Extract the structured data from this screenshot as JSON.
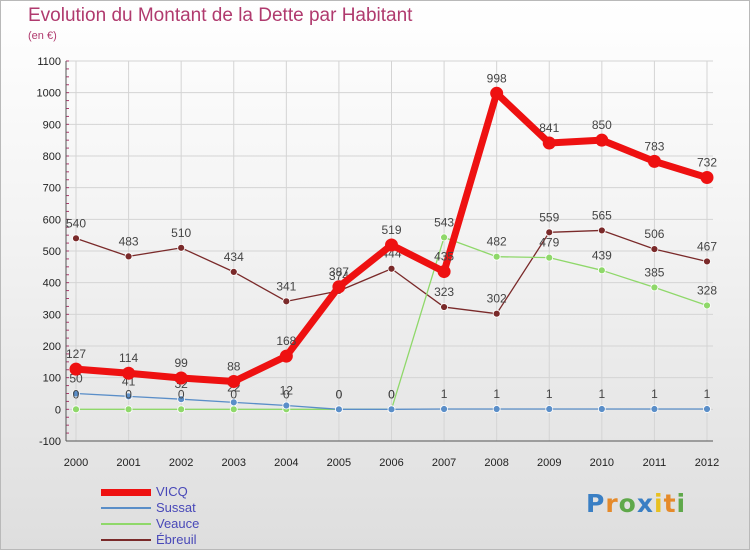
{
  "title": "Evolution du Montant de la Dette par Habitant",
  "subtitle": "(en €)",
  "logo": {
    "letters": [
      "P",
      "r",
      "o",
      "x",
      "i",
      "t",
      "i"
    ],
    "colors": [
      "#3a7fc4",
      "#e58a2a",
      "#5fa84a",
      "#3a7fc4",
      "#e8c020",
      "#e58a2a",
      "#5fa84a"
    ]
  },
  "chart_data": {
    "type": "line",
    "x": [
      "2000",
      "2001",
      "2002",
      "2003",
      "2004",
      "2005",
      "2006",
      "2007",
      "2008",
      "2009",
      "2010",
      "2011",
      "2012"
    ],
    "yticks": [
      "-100",
      "0",
      "100",
      "200",
      "300",
      "400",
      "500",
      "600",
      "700",
      "800",
      "900",
      "1000",
      "1100"
    ],
    "ylim": [
      -100,
      1100
    ],
    "grid": true,
    "legend_position": "bottom-left",
    "series": [
      {
        "name": "Ébreuil",
        "color": "#7a2a2a",
        "width": 1.3,
        "marker_r": 3.5,
        "values": [
          540,
          483,
          510,
          434,
          341,
          374,
          444,
          323,
          302,
          559,
          565,
          506,
          467
        ],
        "labels": [
          "540",
          "483",
          "510",
          "434",
          "341",
          "374",
          "444",
          "323",
          "302",
          "559",
          "565",
          "506",
          "467"
        ]
      },
      {
        "name": "Veauce",
        "color": "#8fd86a",
        "width": 1.3,
        "marker_r": 3.5,
        "values": [
          0,
          0,
          0,
          0,
          0,
          0,
          0,
          543,
          482,
          479,
          439,
          385,
          328
        ],
        "labels": [
          "",
          "",
          "",
          "",
          "",
          "",
          "",
          "543",
          "482",
          "479",
          "439",
          "385",
          "328"
        ]
      },
      {
        "name": "Sussat",
        "color": "#5a8ec8",
        "width": 1.3,
        "marker_r": 3.5,
        "values": [
          50,
          41,
          32,
          22,
          12,
          0,
          0,
          1,
          1,
          1,
          1,
          1,
          1
        ],
        "labels": [
          "50",
          "41",
          "32",
          "22",
          "12",
          "0",
          "0",
          "1",
          "1",
          "1",
          "1",
          "1",
          "1"
        ]
      },
      {
        "name": "VICQ",
        "color": "#ee1111",
        "width": 7,
        "marker_r": 6.5,
        "values": [
          127,
          114,
          99,
          88,
          168,
          387,
          519,
          435,
          998,
          841,
          850,
          783,
          732
        ],
        "labels": [
          "127",
          "114",
          "99",
          "88",
          "168",
          "387",
          "519",
          "435",
          "998",
          "841",
          "850",
          "783",
          "732"
        ]
      }
    ],
    "overlap_labels": [
      "0",
      "0",
      "0",
      "0",
      "0",
      "0",
      "0"
    ]
  },
  "legend": [
    {
      "name": "VICQ",
      "color": "#ee1111",
      "width": 7
    },
    {
      "name": "Sussat",
      "color": "#5a8ec8",
      "width": 2
    },
    {
      "name": "Veauce",
      "color": "#8fd86a",
      "width": 2
    },
    {
      "name": "Ébreuil",
      "color": "#7a2a2a",
      "width": 2
    }
  ]
}
